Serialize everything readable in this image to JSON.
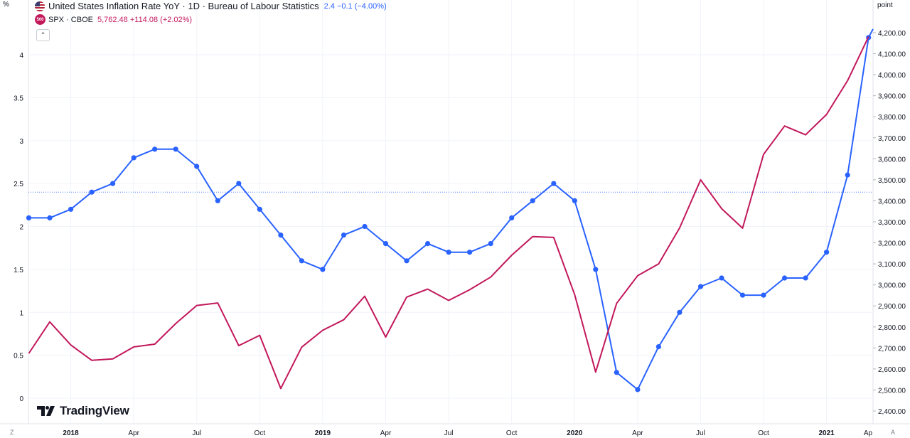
{
  "legend": {
    "inflation": {
      "title": "United States Inflation Rate YoY · 1D · Bureau of Labour Statistics",
      "value": "2.4 −0.1 (−4.00%)",
      "color": "#2962ff"
    },
    "spx": {
      "icon_text": "500",
      "title": "SPX · CBOE",
      "value": "5,762.48 +114.08 (+2.02%)",
      "color": "#c2185b"
    }
  },
  "scale_labels": {
    "left_unit": "%",
    "right_unit": "point",
    "bottom_left": "Z",
    "bottom_right": "A"
  },
  "branding": {
    "logo_text": "TradingView"
  },
  "icons": {
    "collapse": "chevron-up-icon",
    "flag": "us-flag-icon"
  },
  "chart_data": {
    "type": "line",
    "x_labels": [
      "2018",
      "Apr",
      "Jul",
      "Oct",
      "2019",
      "Apr",
      "Jul",
      "Oct",
      "2020",
      "Apr",
      "Jul",
      "Oct",
      "2021",
      "Ap"
    ],
    "x_bold": [
      "2018",
      "2019",
      "2020",
      "2021"
    ],
    "left_axis": {
      "ticks": [
        "0",
        "0.5",
        "1",
        "1.5",
        "2",
        "2.5",
        "3",
        "3.5",
        "4"
      ],
      "range": [
        0,
        4
      ]
    },
    "right_axis": {
      "ticks": [
        "2,400.00",
        "2,500.00",
        "2,600.00",
        "2,700.00",
        "2,800.00",
        "2,900.00",
        "3,000.00",
        "3,100.00",
        "3,200.00",
        "3,300.00",
        "3,400.00",
        "3,500.00",
        "3,600.00",
        "3,700.00",
        "3,800.00",
        "3,900.00",
        "4,000.00",
        "4,100.00",
        "4,200.00"
      ],
      "range": [
        2400,
        4200
      ]
    },
    "reference_line": {
      "value": 2.4,
      "color": "#2962ff"
    },
    "series": [
      {
        "name": "United States Inflation Rate YoY",
        "axis": "left",
        "color": "#2962ff",
        "markers": true,
        "points": [
          [
            "2017-11",
            2.1
          ],
          [
            "2017-12",
            2.1
          ],
          [
            "2018-01",
            2.2
          ],
          [
            "2018-02",
            2.4
          ],
          [
            "2018-03",
            2.5
          ],
          [
            "2018-04",
            2.8
          ],
          [
            "2018-05",
            2.9
          ],
          [
            "2018-06",
            2.9
          ],
          [
            "2018-07",
            2.7
          ],
          [
            "2018-08",
            2.3
          ],
          [
            "2018-09",
            2.5
          ],
          [
            "2018-10",
            2.2
          ],
          [
            "2018-11",
            1.9
          ],
          [
            "2018-12",
            1.6
          ],
          [
            "2019-01",
            1.5
          ],
          [
            "2019-02",
            1.9
          ],
          [
            "2019-03",
            2.0
          ],
          [
            "2019-04",
            1.8
          ],
          [
            "2019-05",
            1.6
          ],
          [
            "2019-06",
            1.8
          ],
          [
            "2019-07",
            1.7
          ],
          [
            "2019-08",
            1.7
          ],
          [
            "2019-09",
            1.8
          ],
          [
            "2019-10",
            2.1
          ],
          [
            "2019-11",
            2.3
          ],
          [
            "2019-12",
            2.5
          ],
          [
            "2020-01",
            2.3
          ],
          [
            "2020-02",
            1.5
          ],
          [
            "2020-03",
            0.3
          ],
          [
            "2020-04",
            0.1
          ],
          [
            "2020-05",
            0.6
          ],
          [
            "2020-06",
            1.0
          ],
          [
            "2020-07",
            1.3
          ],
          [
            "2020-08",
            1.4
          ],
          [
            "2020-09",
            1.2
          ],
          [
            "2020-10",
            1.2
          ],
          [
            "2020-11",
            1.4
          ],
          [
            "2020-12",
            1.4
          ],
          [
            "2021-01",
            1.7
          ],
          [
            "2021-02",
            2.6
          ],
          [
            "2021-03",
            4.2
          ]
        ],
        "extend_to": 4.3
      },
      {
        "name": "SPX",
        "axis": "right",
        "color": "#c2185b",
        "markers": false,
        "points": [
          [
            "2017-11",
            2674
          ],
          [
            "2017-12",
            2824
          ],
          [
            "2018-01",
            2714
          ],
          [
            "2018-02",
            2641
          ],
          [
            "2018-03",
            2648
          ],
          [
            "2018-04",
            2705
          ],
          [
            "2018-05",
            2718
          ],
          [
            "2018-06",
            2816
          ],
          [
            "2018-07",
            2902
          ],
          [
            "2018-08",
            2914
          ],
          [
            "2018-09",
            2711
          ],
          [
            "2018-10",
            2760
          ],
          [
            "2018-11",
            2507
          ],
          [
            "2018-12",
            2704
          ],
          [
            "2019-01",
            2784
          ],
          [
            "2019-02",
            2834
          ],
          [
            "2019-03",
            2946
          ],
          [
            "2019-04",
            2752
          ],
          [
            "2019-05",
            2942
          ],
          [
            "2019-06",
            2980
          ],
          [
            "2019-07",
            2926
          ],
          [
            "2019-08",
            2977
          ],
          [
            "2019-09",
            3037
          ],
          [
            "2019-10",
            3141
          ],
          [
            "2019-11",
            3230
          ],
          [
            "2019-12",
            3226
          ],
          [
            "2020-01",
            2954
          ],
          [
            "2020-02",
            2585
          ],
          [
            "2020-03",
            2912
          ],
          [
            "2020-04",
            3044
          ],
          [
            "2020-05",
            3100
          ],
          [
            "2020-06",
            3271
          ],
          [
            "2020-07",
            3500
          ],
          [
            "2020-08",
            3363
          ],
          [
            "2020-09",
            3270
          ],
          [
            "2020-10",
            3621
          ],
          [
            "2020-11",
            3756
          ],
          [
            "2020-12",
            3714
          ],
          [
            "2021-01",
            3811
          ],
          [
            "2021-02",
            3972
          ],
          [
            "2021-03",
            4181
          ]
        ]
      }
    ],
    "grid": true
  }
}
